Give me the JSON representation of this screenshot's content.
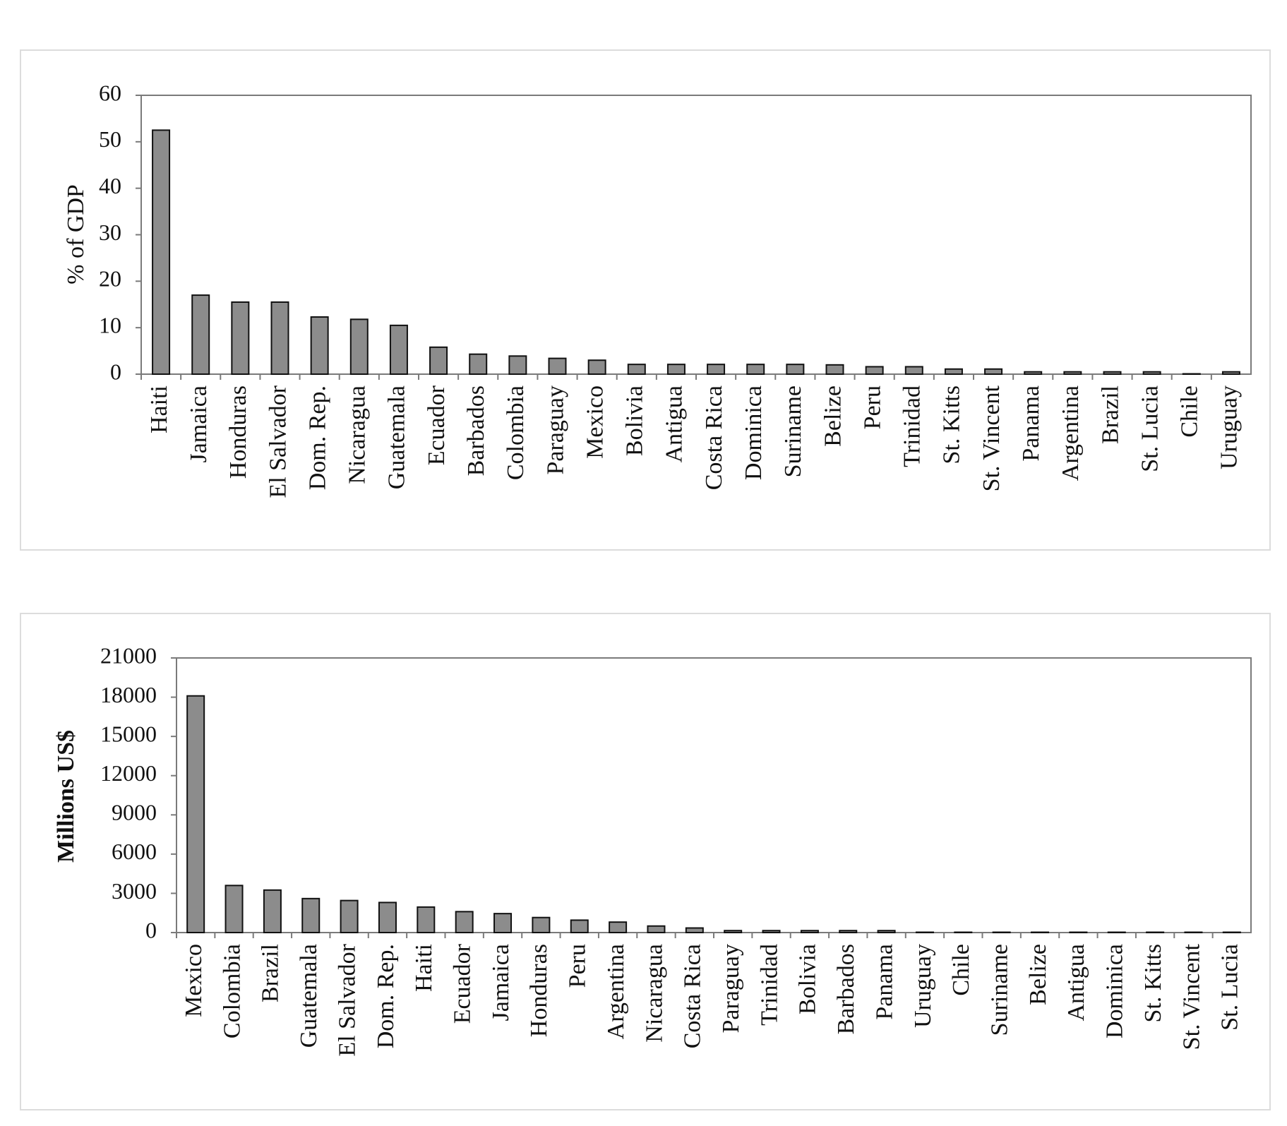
{
  "chart_data": [
    {
      "type": "bar",
      "title": "",
      "xlabel": "",
      "ylabel": "% of GDP",
      "ylim": [
        0,
        60
      ],
      "yticks": [
        "0",
        "10",
        "20",
        "30",
        "40",
        "50",
        "60"
      ],
      "grid": false,
      "bar_color": "#8c8c8c",
      "categories": [
        "Haiti",
        "Jamaica",
        "Honduras",
        "El Salvador",
        "Dom. Rep.",
        "Nicaragua",
        "Guatemala",
        "Ecuador",
        "Barbados",
        "Colombia",
        "Paraguay",
        "Mexico",
        "Bolivia",
        "Antigua",
        "Costa Rica",
        "Dominica",
        "Suriname",
        "Belize",
        "Peru",
        "Trinidad",
        "St. Kitts",
        "St. Vincent",
        "Panama",
        "Argentina",
        "Brazil",
        "St. Lucia",
        "Chile",
        "Uruguay"
      ],
      "values": [
        52.5,
        17,
        15.5,
        15.5,
        12.3,
        11.8,
        10.5,
        5.8,
        4.3,
        3.9,
        3.4,
        3.0,
        2.1,
        2.1,
        2.1,
        2.1,
        2.1,
        2.0,
        1.6,
        1.6,
        1.1,
        1.1,
        0.5,
        0.5,
        0.5,
        0.5,
        0.05,
        0.5
      ]
    },
    {
      "type": "bar",
      "title": "",
      "xlabel": "",
      "ylabel": "Millions US$",
      "ylim": [
        0,
        21000
      ],
      "yticks": [
        "0",
        "3000",
        "6000",
        "9000",
        "12000",
        "15000",
        "18000",
        "21000"
      ],
      "grid": false,
      "bar_color": "#8c8c8c",
      "categories": [
        "Mexico",
        "Colombia",
        "Brazil",
        "Guatemala",
        "El Salvador",
        "Dom. Rep.",
        "Haiti",
        "Ecuador",
        "Jamaica",
        "Honduras",
        "Peru",
        "Argentina",
        "Nicaragua",
        "Costa Rica",
        "Paraguay",
        "Trinidad",
        "Bolivia",
        "Barbados",
        "Panama",
        "Uruguay",
        "Chile",
        "Suriname",
        "Belize",
        "Antigua",
        "Dominica",
        "St. Kitts",
        "St. Vincent",
        "St. Lucia"
      ],
      "values": [
        18100,
        3600,
        3250,
        2600,
        2450,
        2300,
        1950,
        1600,
        1450,
        1150,
        950,
        800,
        500,
        350,
        150,
        150,
        150,
        150,
        150,
        10,
        10,
        10,
        10,
        10,
        10,
        10,
        10,
        10
      ]
    }
  ]
}
